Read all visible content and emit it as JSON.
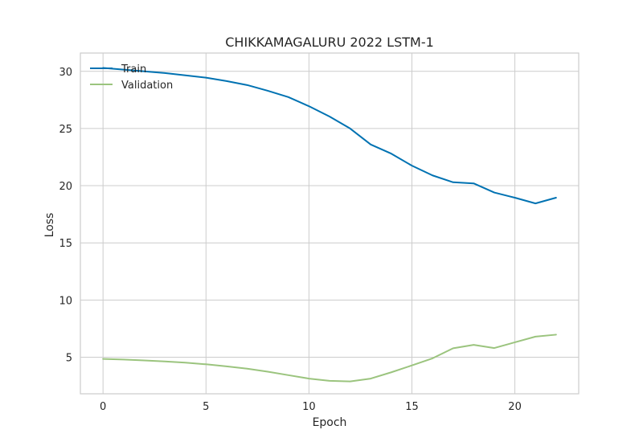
{
  "chart_data": {
    "type": "line",
    "title": "CHIKKAMAGALURU 2022 LSTM-1",
    "xlabel": "Epoch",
    "ylabel": "Loss",
    "xlim": [
      -1.1,
      23.1
    ],
    "ylim": [
      1.8,
      31.6
    ],
    "xticks": [
      0,
      5,
      10,
      15,
      20
    ],
    "yticks": [
      5,
      10,
      15,
      20,
      25,
      30
    ],
    "grid": true,
    "legend_position": "top-left",
    "series": [
      {
        "name": "Train",
        "color": "#0072b2",
        "x": [
          0,
          1,
          2,
          3,
          4,
          5,
          6,
          7,
          8,
          9,
          10,
          11,
          12,
          13,
          14,
          15,
          16,
          17,
          18,
          19,
          20,
          21,
          22
        ],
        "values": [
          30.3,
          30.15,
          30.0,
          29.85,
          29.65,
          29.45,
          29.15,
          28.8,
          28.3,
          27.75,
          26.95,
          26.05,
          25.0,
          23.6,
          22.8,
          21.75,
          20.9,
          20.3,
          20.2,
          19.4,
          18.95,
          18.45,
          18.95
        ]
      },
      {
        "name": "Validation",
        "color": "#9bc47e",
        "x": [
          0,
          1,
          2,
          3,
          4,
          5,
          6,
          7,
          8,
          9,
          10,
          11,
          12,
          13,
          14,
          15,
          16,
          17,
          18,
          19,
          20,
          21,
          22
        ],
        "values": [
          4.85,
          4.8,
          4.72,
          4.63,
          4.52,
          4.38,
          4.2,
          4.0,
          3.73,
          3.43,
          3.13,
          2.93,
          2.88,
          3.13,
          3.68,
          4.28,
          4.9,
          5.78,
          6.08,
          5.8,
          6.3,
          6.8,
          6.97
        ]
      }
    ]
  }
}
